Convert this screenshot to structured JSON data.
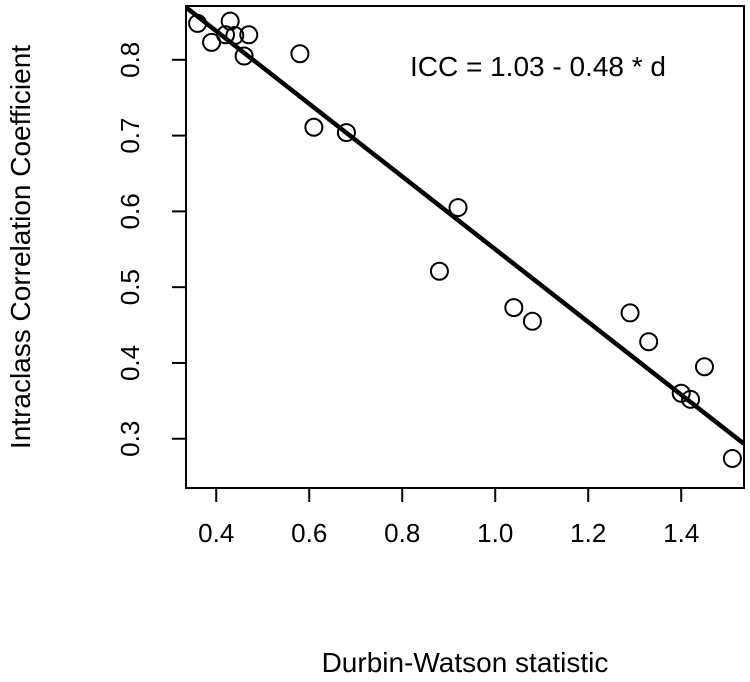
{
  "chart_data": {
    "type": "scatter",
    "title": "",
    "xlabel": "Durbin-Watson statistic",
    "ylabel": "Intraclass Correlation Coefficient",
    "xlim": [
      0.335,
      1.535
    ],
    "ylim": [
      0.235,
      0.871
    ],
    "x_ticks": [
      0.4,
      0.6,
      0.8,
      1.0,
      1.2,
      1.4
    ],
    "x_tick_labels": [
      "0.4",
      "0.6",
      "0.8",
      "1.0",
      "1.2",
      "1.4"
    ],
    "y_ticks": [
      0.3,
      0.4,
      0.5,
      0.6,
      0.7,
      0.8
    ],
    "y_tick_labels": [
      "0.3",
      "0.4",
      "0.5",
      "0.6",
      "0.7",
      "0.8"
    ],
    "grid": false,
    "annotation": "ICC = 1.03 - 0.48 * d",
    "fit_line": {
      "intercept": 1.03,
      "slope": -0.48
    },
    "points": [
      {
        "x": 0.36,
        "y": 0.848
      },
      {
        "x": 0.39,
        "y": 0.823
      },
      {
        "x": 0.42,
        "y": 0.833
      },
      {
        "x": 0.43,
        "y": 0.851
      },
      {
        "x": 0.44,
        "y": 0.832
      },
      {
        "x": 0.46,
        "y": 0.805
      },
      {
        "x": 0.47,
        "y": 0.833
      },
      {
        "x": 0.58,
        "y": 0.808
      },
      {
        "x": 0.61,
        "y": 0.711
      },
      {
        "x": 0.68,
        "y": 0.704
      },
      {
        "x": 0.88,
        "y": 0.521
      },
      {
        "x": 0.92,
        "y": 0.605
      },
      {
        "x": 1.04,
        "y": 0.473
      },
      {
        "x": 1.08,
        "y": 0.455
      },
      {
        "x": 1.29,
        "y": 0.466
      },
      {
        "x": 1.33,
        "y": 0.428
      },
      {
        "x": 1.4,
        "y": 0.36
      },
      {
        "x": 1.42,
        "y": 0.352
      },
      {
        "x": 1.45,
        "y": 0.395
      },
      {
        "x": 1.51,
        "y": 0.274
      }
    ]
  }
}
